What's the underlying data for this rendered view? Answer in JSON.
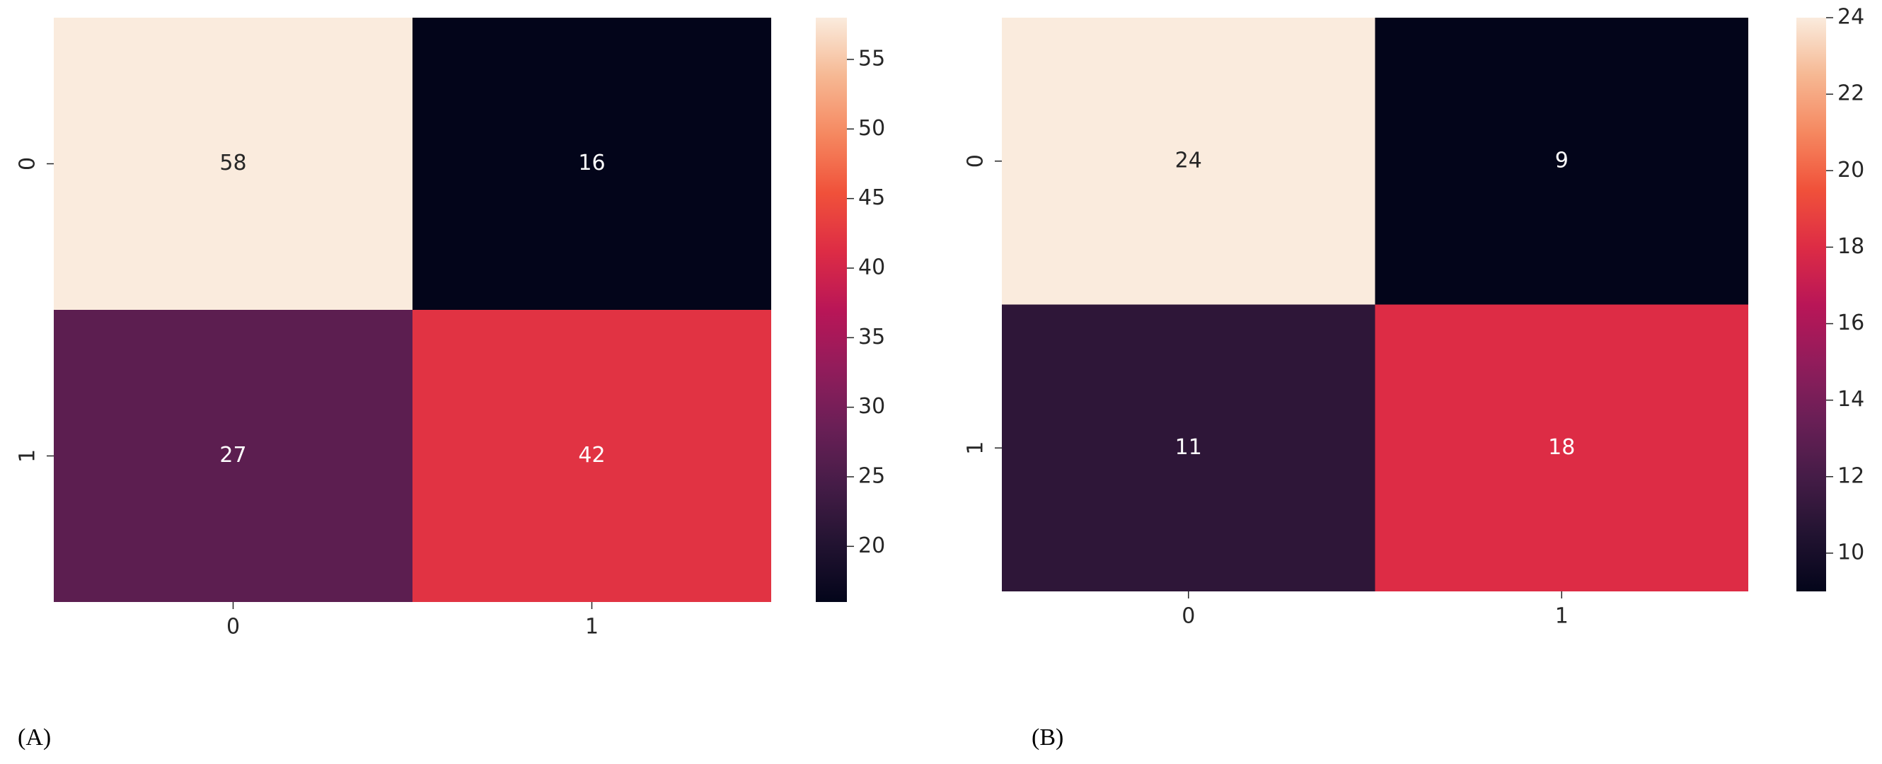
{
  "chart_data": [
    {
      "type": "heatmap",
      "label": "(A)",
      "colormap": "rocket",
      "x_categories": [
        "0",
        "1"
      ],
      "y_categories": [
        "0",
        "1"
      ],
      "values": [
        [
          58,
          16
        ],
        [
          27,
          42
        ]
      ],
      "clim": [
        16,
        58
      ],
      "cticks": [
        20,
        25,
        30,
        35,
        40,
        45,
        50,
        55
      ]
    },
    {
      "type": "heatmap",
      "label": "(B)",
      "colormap": "rocket",
      "x_categories": [
        "0",
        "1"
      ],
      "y_categories": [
        "0",
        "1"
      ],
      "values": [
        [
          24,
          9
        ],
        [
          11,
          18
        ]
      ],
      "clim": [
        9,
        24
      ],
      "cticks": [
        10,
        12,
        14,
        16,
        18,
        20,
        22,
        24
      ]
    }
  ]
}
